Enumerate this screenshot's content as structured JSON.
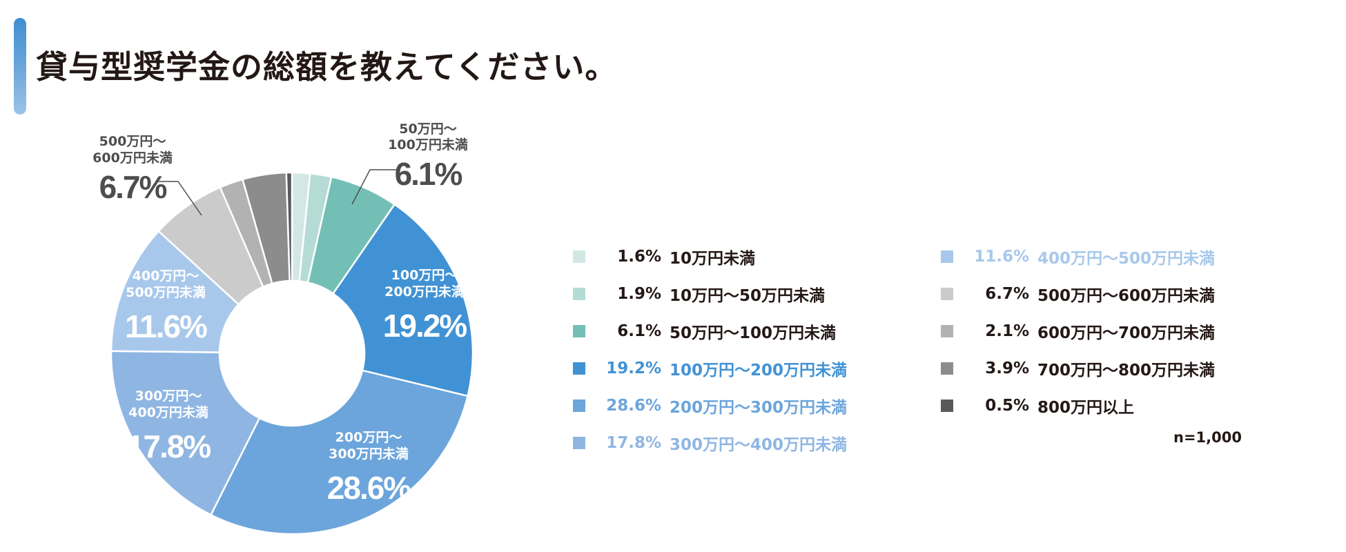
{
  "title": "貸与型奨学金の総額を教えてください。",
  "sample_note": "n=1,000",
  "chart_data": {
    "type": "pie",
    "variant": "donut",
    "title": "貸与型奨学金の総額を教えてください。",
    "slices": [
      {
        "label": "10万円未満",
        "value": 1.6,
        "color": "#d3e8e4",
        "pct_text": "1.6%",
        "legend_text": "10万円未満",
        "legend_color": "#231815"
      },
      {
        "label": "10万円〜50万円未満",
        "value": 1.9,
        "color": "#b5dbd5",
        "pct_text": "1.9%",
        "legend_text": "10万円〜50万円未満",
        "legend_color": "#231815"
      },
      {
        "label": "50万円〜100万円未満",
        "value": 6.1,
        "color": "#74bfb5",
        "pct_text": "6.1%",
        "legend_text": "50万円〜100万円未満",
        "legend_color": "#231815"
      },
      {
        "label": "100万円〜200万円未満",
        "value": 19.2,
        "color": "#4192d4",
        "pct_text": "19.2%",
        "legend_text": "100万円〜200万円未満",
        "legend_color": "#4192d4"
      },
      {
        "label": "200万円〜300万円未満",
        "value": 28.6,
        "color": "#6ca5db",
        "pct_text": "28.6%",
        "legend_text": "200万円〜300万円未満",
        "legend_color": "#6ca5db"
      },
      {
        "label": "300万円〜400万円未満",
        "value": 17.8,
        "color": "#8fb6e2",
        "pct_text": "17.8%",
        "legend_text": "300万円〜400万円未満",
        "legend_color": "#8fb6e2"
      },
      {
        "label": "400万円〜500万円未満",
        "value": 11.6,
        "color": "#a8c8eb",
        "pct_text": "11.6%",
        "legend_text": "400万円〜500万円未満",
        "legend_color": "#a8c8eb"
      },
      {
        "label": "500万円〜600万円未満",
        "value": 6.7,
        "color": "#cbcbcb",
        "pct_text": "6.7%",
        "legend_text": "500万円〜600万円未満",
        "legend_color": "#231815"
      },
      {
        "label": "600万円〜700万円未満",
        "value": 2.1,
        "color": "#b2b2b2",
        "pct_text": "2.1%",
        "legend_text": "600万円〜700万円未満",
        "legend_color": "#231815"
      },
      {
        "label": "700万円〜800万円未満",
        "value": 3.9,
        "color": "#8c8c8c",
        "pct_text": "3.9%",
        "legend_text": "700万円〜800万円未満",
        "legend_color": "#231815"
      },
      {
        "label": "800万円以上",
        "value": 0.5,
        "color": "#595959",
        "pct_text": "0.5%",
        "legend_text": "800万円以上",
        "legend_color": "#231815"
      }
    ],
    "annotations": [
      {
        "slice": 2,
        "line1": "50万円〜",
        "line2": "100万円未満",
        "value_text": "6.1%",
        "color": "#4d4d4d",
        "placement": "outside-top-right"
      },
      {
        "slice": 3,
        "line1": "100万円〜",
        "line2": "200万円未満",
        "value_text": "19.2%",
        "color": "#ffffff",
        "placement": "inside"
      },
      {
        "slice": 4,
        "line1": "200万円〜",
        "line2": "300万円未満",
        "value_text": "28.6%",
        "color": "#ffffff",
        "placement": "inside"
      },
      {
        "slice": 5,
        "line1": "300万円〜",
        "line2": "400万円未満",
        "value_text": "17.8%",
        "color": "#ffffff",
        "placement": "inside"
      },
      {
        "slice": 6,
        "line1": "400万円〜",
        "line2": "500万円未満",
        "value_text": "11.6%",
        "color": "#ffffff",
        "placement": "inside"
      },
      {
        "slice": 7,
        "line1": "500万円〜",
        "line2": "600万円未満",
        "value_text": "6.7%",
        "color": "#4d4d4d",
        "placement": "outside-top-left"
      }
    ],
    "legend_columns": [
      [
        0,
        1,
        2,
        3,
        4,
        5
      ],
      [
        6,
        7,
        8,
        9,
        10
      ]
    ]
  }
}
